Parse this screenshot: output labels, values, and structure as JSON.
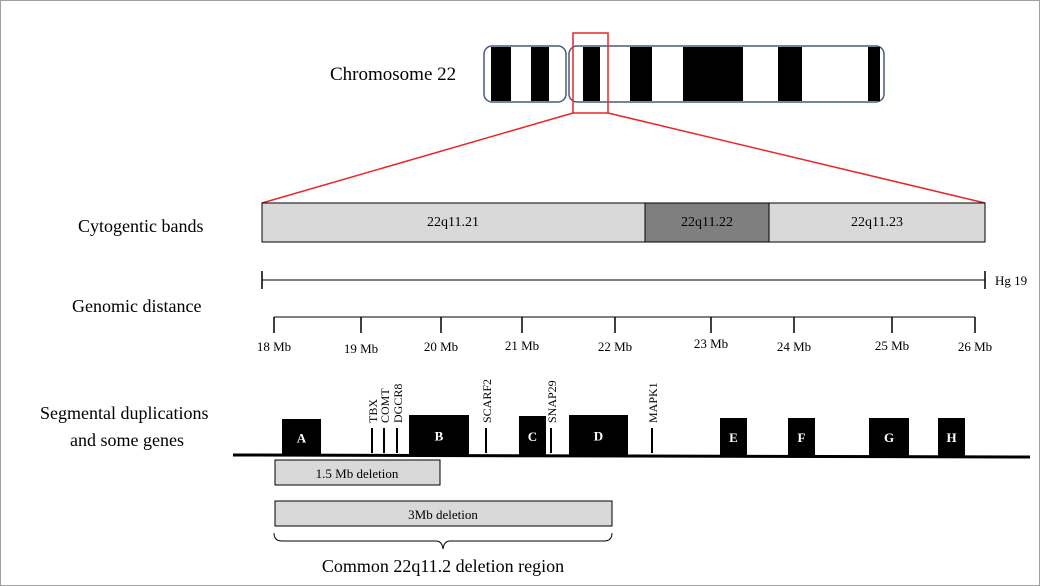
{
  "chromosome": {
    "label": "Chromosome 22"
  },
  "rows": {
    "cytogenetic_label": "Cytogentic bands",
    "genomic_label": "Genomic distance",
    "segdup_label_line1": "Segmental duplications",
    "segdup_label_line2": "and some genes"
  },
  "bands": [
    {
      "name": "22q11.21",
      "color": "#d9d9d9"
    },
    {
      "name": "22q11.22",
      "color": "#7f7f7f"
    },
    {
      "name": "22q11.23",
      "color": "#d9d9d9"
    }
  ],
  "assembly_label": "Hg 19",
  "genomic_ticks": [
    "18 Mb",
    "19 Mb",
    "20 Mb",
    "21 Mb",
    "22 Mb",
    "23 Mb",
    "24 Mb",
    "25 Mb",
    "26 Mb"
  ],
  "lcr_blocks": [
    "A",
    "B",
    "C",
    "D",
    "E",
    "F",
    "G",
    "H"
  ],
  "genes": [
    "TBX",
    "COMT",
    "DGCR8",
    "SCARF2",
    "SNAP29",
    "MAPK1"
  ],
  "deletions": [
    {
      "label": "1.5 Mb deletion"
    },
    {
      "label": "3Mb deletion"
    }
  ],
  "common_region_label": "Common 22q11.2 deletion region",
  "colors": {
    "highlight": "#e8262a",
    "chromosome_outline": "#4a5a7a",
    "band_dark": "#000000",
    "deletion_fill": "#d9d9d9"
  }
}
